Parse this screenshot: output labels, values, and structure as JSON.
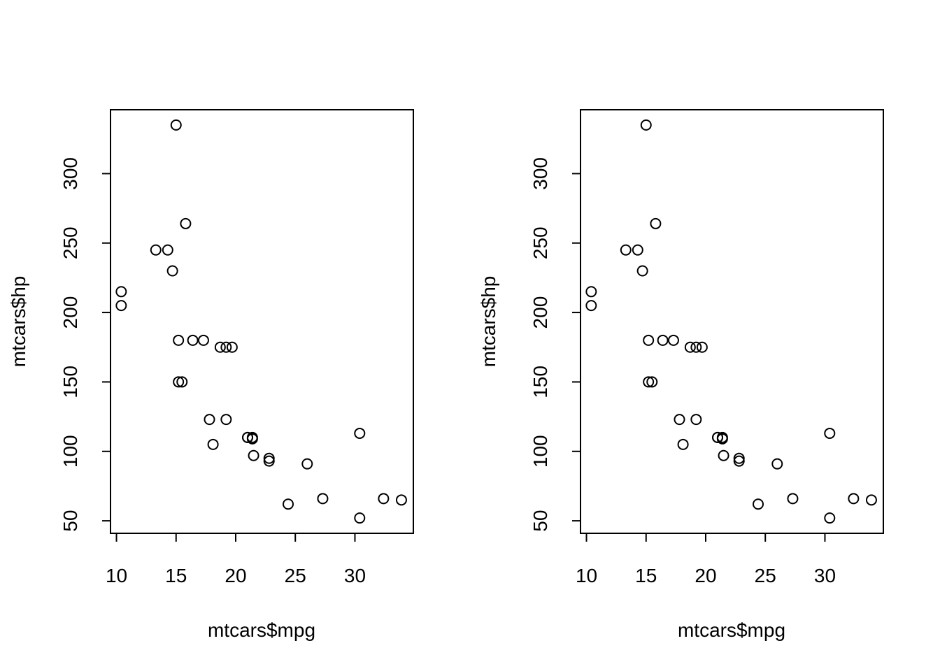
{
  "chart_data": [
    {
      "type": "scatter",
      "title": "",
      "xlabel": "mtcars$mpg",
      "ylabel": "mtcars$hp",
      "xlim": [
        9.5,
        34.9
      ],
      "ylim": [
        41,
        346
      ],
      "xticks": [
        10,
        15,
        20,
        25,
        30
      ],
      "yticks": [
        50,
        100,
        150,
        200,
        250,
        300
      ],
      "grid": false,
      "series": [
        {
          "points": [
            [
              21.0,
              110
            ],
            [
              21.0,
              110
            ],
            [
              22.8,
              93
            ],
            [
              21.4,
              110
            ],
            [
              18.7,
              175
            ],
            [
              18.1,
              105
            ],
            [
              14.3,
              245
            ],
            [
              24.4,
              62
            ],
            [
              22.8,
              95
            ],
            [
              19.2,
              123
            ],
            [
              17.8,
              123
            ],
            [
              16.4,
              180
            ],
            [
              17.3,
              180
            ],
            [
              15.2,
              180
            ],
            [
              10.4,
              205
            ],
            [
              10.4,
              215
            ],
            [
              14.7,
              230
            ],
            [
              32.4,
              66
            ],
            [
              30.4,
              52
            ],
            [
              33.9,
              65
            ],
            [
              21.5,
              97
            ],
            [
              15.5,
              150
            ],
            [
              15.2,
              150
            ],
            [
              13.3,
              245
            ],
            [
              19.2,
              175
            ],
            [
              27.3,
              66
            ],
            [
              26.0,
              91
            ],
            [
              30.4,
              113
            ],
            [
              15.8,
              264
            ],
            [
              19.7,
              175
            ],
            [
              15.0,
              335
            ],
            [
              21.4,
              109
            ]
          ]
        }
      ]
    },
    {
      "type": "scatter",
      "title": "",
      "xlabel": "mtcars$mpg",
      "ylabel": "mtcars$hp",
      "xlim": [
        9.5,
        34.9
      ],
      "ylim": [
        41,
        346
      ],
      "xticks": [
        10,
        15,
        20,
        25,
        30
      ],
      "yticks": [
        50,
        100,
        150,
        200,
        250,
        300
      ],
      "grid": false,
      "series": [
        {
          "points": [
            [
              21.0,
              110
            ],
            [
              21.0,
              110
            ],
            [
              22.8,
              93
            ],
            [
              21.4,
              110
            ],
            [
              18.7,
              175
            ],
            [
              18.1,
              105
            ],
            [
              14.3,
              245
            ],
            [
              24.4,
              62
            ],
            [
              22.8,
              95
            ],
            [
              19.2,
              123
            ],
            [
              17.8,
              123
            ],
            [
              16.4,
              180
            ],
            [
              17.3,
              180
            ],
            [
              15.2,
              180
            ],
            [
              10.4,
              205
            ],
            [
              10.4,
              215
            ],
            [
              14.7,
              230
            ],
            [
              32.4,
              66
            ],
            [
              30.4,
              52
            ],
            [
              33.9,
              65
            ],
            [
              21.5,
              97
            ],
            [
              15.5,
              150
            ],
            [
              15.2,
              150
            ],
            [
              13.3,
              245
            ],
            [
              19.2,
              175
            ],
            [
              27.3,
              66
            ],
            [
              26.0,
              91
            ],
            [
              30.4,
              113
            ],
            [
              15.8,
              264
            ],
            [
              19.7,
              175
            ],
            [
              15.0,
              335
            ],
            [
              21.4,
              109
            ]
          ]
        }
      ]
    }
  ]
}
